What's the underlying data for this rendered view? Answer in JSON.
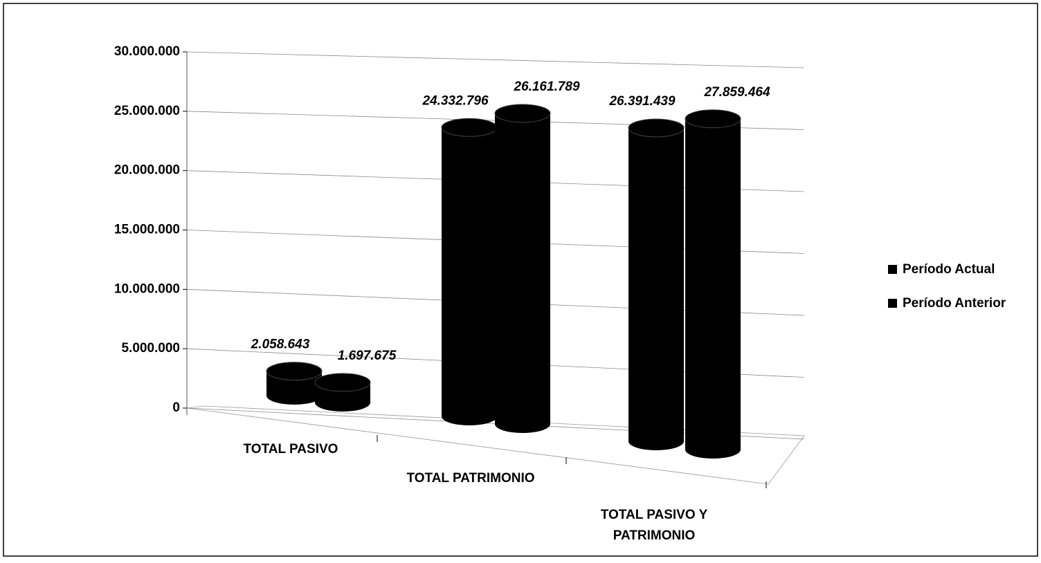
{
  "chart_data": {
    "type": "bar3d",
    "categories": [
      "TOTAL PASIVO",
      "TOTAL PATRIMONIO",
      "TOTAL PASIVO Y PATRIMONIO"
    ],
    "series": [
      {
        "name": "Período Actual",
        "color": "#000000",
        "values": [
          2058643,
          24332796,
          26391439
        ],
        "value_labels": [
          "2.058.643",
          "24.332.796",
          "26.391.439"
        ]
      },
      {
        "name": "Período Anterior",
        "color": "#000000",
        "values": [
          1697675,
          26161789,
          27859464
        ],
        "value_labels": [
          "1.697.675",
          "26.161.789",
          "27.859.464"
        ]
      }
    ],
    "ylim": [
      0,
      30000000
    ],
    "yticks": [
      0,
      {
        "value": 5000000,
        "label": "5.000.000"
      },
      {
        "value": 10000000,
        "label": "10.000.000"
      },
      {
        "value": 15000000,
        "label": "15.000.000"
      },
      {
        "value": 20000000,
        "label": "20.000.000"
      },
      {
        "value": 25000000,
        "label": "25.000.000"
      },
      {
        "value": 30000000,
        "label": "30.000.000"
      }
    ],
    "grid": true,
    "legend": "right"
  }
}
